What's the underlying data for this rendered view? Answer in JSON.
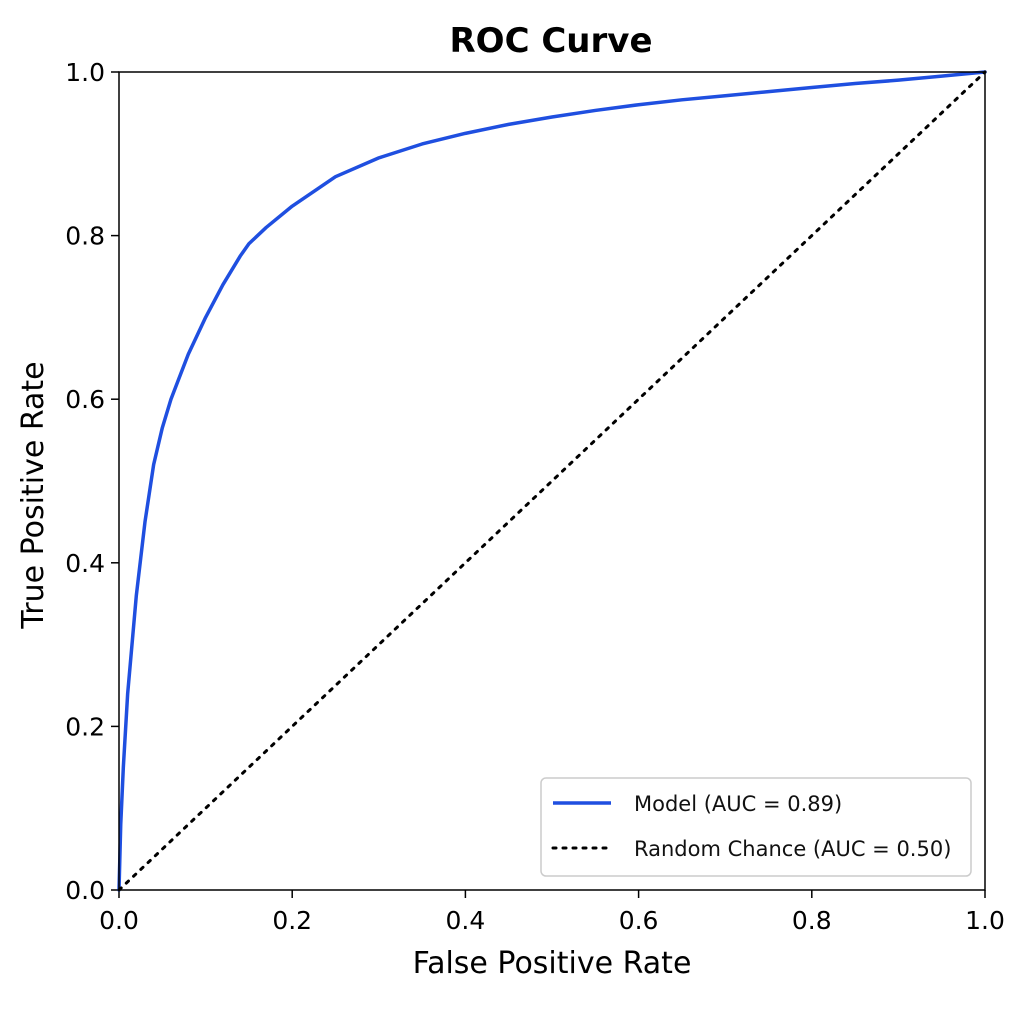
{
  "chart_data": {
    "type": "line",
    "title": "ROC Curve",
    "xlabel": "False Positive Rate",
    "ylabel": "True Positive Rate",
    "xlim": [
      0.0,
      1.0
    ],
    "ylim": [
      0.0,
      1.0
    ],
    "xticks": [
      "0.0",
      "0.2",
      "0.4",
      "0.6",
      "0.8",
      "1.0"
    ],
    "yticks": [
      "0.0",
      "0.2",
      "0.4",
      "0.6",
      "0.8",
      "1.0"
    ],
    "grid": false,
    "legend_position": "bottom-right",
    "series": [
      {
        "name": "Model (AUC = 0.89)",
        "style": "solid",
        "color": "#1f4fe0",
        "x": [
          0.0,
          0.002,
          0.005,
          0.01,
          0.02,
          0.03,
          0.04,
          0.05,
          0.06,
          0.08,
          0.1,
          0.12,
          0.14,
          0.15,
          0.17,
          0.2,
          0.25,
          0.3,
          0.35,
          0.4,
          0.45,
          0.5,
          0.55,
          0.6,
          0.65,
          0.7,
          0.75,
          0.8,
          0.85,
          0.9,
          0.95,
          1.0
        ],
        "y": [
          0.0,
          0.08,
          0.15,
          0.24,
          0.36,
          0.45,
          0.52,
          0.565,
          0.6,
          0.655,
          0.7,
          0.74,
          0.775,
          0.79,
          0.81,
          0.836,
          0.872,
          0.895,
          0.912,
          0.925,
          0.936,
          0.945,
          0.953,
          0.96,
          0.966,
          0.971,
          0.976,
          0.981,
          0.986,
          0.99,
          0.995,
          1.0
        ]
      },
      {
        "name": "Random Chance (AUC = 0.50)",
        "style": "dotted",
        "color": "#000000",
        "x": [
          0.0,
          1.0
        ],
        "y": [
          0.0,
          1.0
        ]
      }
    ]
  }
}
